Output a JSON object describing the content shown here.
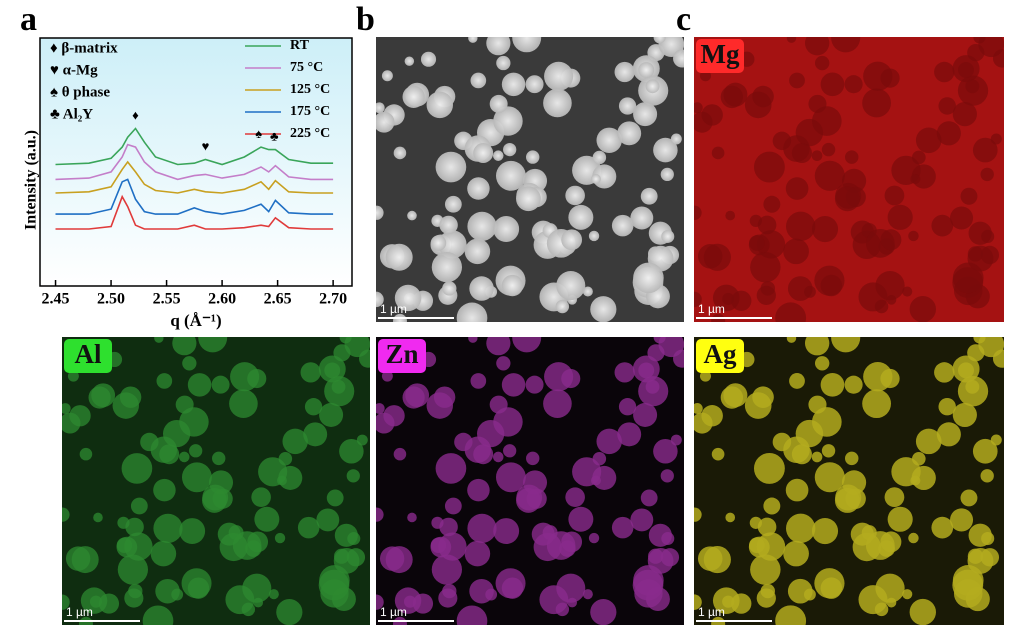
{
  "chart_data": {
    "type": "line",
    "xlabel": "q (Å⁻¹)",
    "ylabel": "Intensity (a.u.)",
    "x": [
      2.45,
      2.48,
      2.5,
      2.51,
      2.515,
      2.522,
      2.53,
      2.54,
      2.56,
      2.575,
      2.585,
      2.6,
      2.62,
      2.635,
      2.642,
      2.648,
      2.66,
      2.68,
      2.7
    ],
    "series": [
      {
        "name": "RT",
        "color": "#3aa55a",
        "values": [
          4.9,
          4.95,
          5.15,
          5.6,
          6.0,
          6.35,
          5.8,
          5.2,
          4.9,
          4.95,
          5.1,
          4.9,
          5.2,
          5.6,
          5.5,
          5.5,
          5.1,
          4.95,
          4.95
        ]
      },
      {
        "name": "75 °C",
        "color": "#c47ec9",
        "values": [
          4.3,
          4.35,
          4.6,
          5.2,
          5.7,
          5.6,
          5.0,
          4.6,
          4.3,
          4.45,
          4.5,
          4.35,
          4.5,
          4.8,
          4.6,
          4.85,
          4.4,
          4.3,
          4.3
        ]
      },
      {
        "name": "125 °C",
        "color": "#c8a020",
        "values": [
          3.75,
          3.8,
          4.0,
          4.7,
          5.0,
          4.6,
          4.1,
          3.85,
          3.75,
          3.9,
          3.8,
          3.75,
          3.9,
          4.2,
          3.9,
          4.25,
          3.8,
          3.75,
          3.75
        ]
      },
      {
        "name": "175 °C",
        "color": "#1f6fc4",
        "values": [
          2.9,
          2.9,
          3.1,
          4.2,
          4.3,
          3.5,
          3.0,
          2.9,
          2.9,
          3.15,
          3.0,
          2.9,
          3.05,
          3.3,
          3.0,
          3.45,
          2.95,
          2.9,
          2.9
        ]
      },
      {
        "name": "225 °C",
        "color": "#e03a3a",
        "values": [
          2.3,
          2.3,
          2.4,
          3.6,
          3.2,
          2.45,
          2.3,
          2.3,
          2.3,
          2.45,
          2.3,
          2.3,
          2.35,
          2.45,
          2.4,
          2.75,
          2.35,
          2.3,
          2.3
        ]
      }
    ],
    "xlim": [
      2.436,
      2.717
    ],
    "ylim": [
      0,
      10
    ],
    "xticks": [
      2.45,
      {
        "value": 2.5,
        "label": "2.50"
      },
      2.55,
      {
        "value": 2.6,
        "label": "2.60"
      },
      2.65,
      {
        "value": 2.7,
        "label": "2.70"
      }
    ],
    "legend": "upper right",
    "phase_notes": [
      "♦ β-matrix",
      "♥ α-Mg",
      "♠ θ phase",
      "♣ Al₂Y"
    ],
    "peak_markers": [
      {
        "symbol": "♦",
        "x": 2.522
      },
      {
        "symbol": "♥",
        "x": 2.585
      },
      {
        "symbol": "♠",
        "x": 2.633
      },
      {
        "symbol": "♣",
        "x": 2.647
      }
    ]
  },
  "panels": {
    "labels": [
      "a",
      "b",
      "c"
    ],
    "maps": [
      {
        "label": "Mg"
      },
      {
        "label": "Al"
      },
      {
        "label": "Zn"
      },
      {
        "label": "Ag"
      }
    ],
    "scale_bar": "1 µm"
  }
}
